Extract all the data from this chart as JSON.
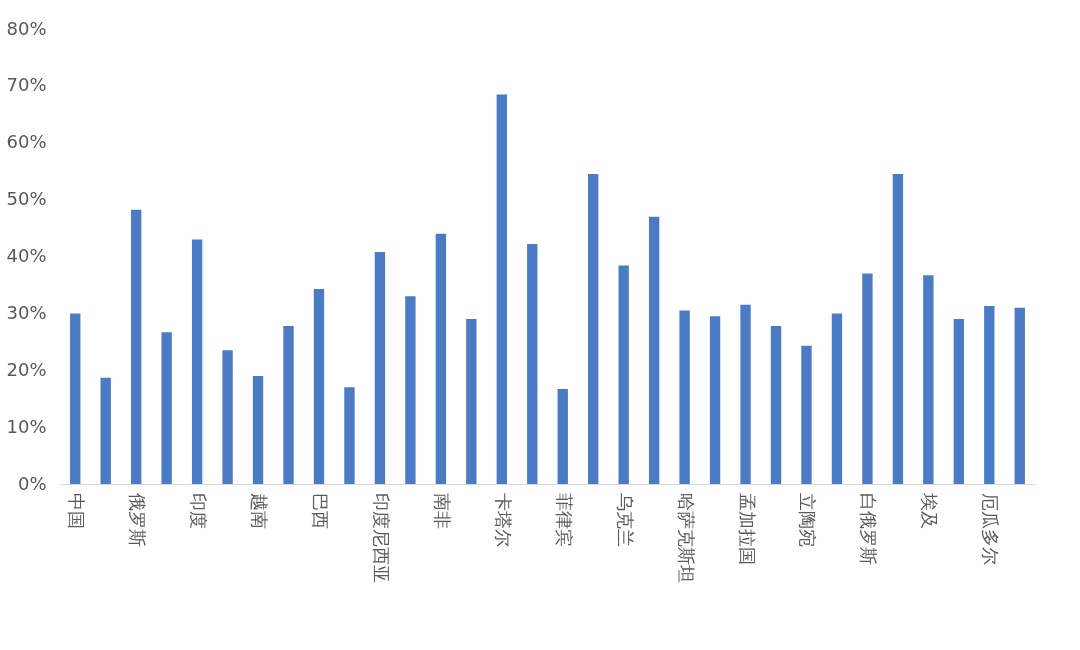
{
  "chart_data": {
    "type": "bar",
    "categories": [
      "中国",
      null,
      "俄罗斯",
      null,
      "印度",
      null,
      "越南",
      null,
      "巴西",
      null,
      "印度尼西亚",
      null,
      "南非",
      null,
      "卡塔尔",
      null,
      "菲律宾",
      null,
      "乌克兰",
      null,
      "哈萨克斯坦",
      null,
      "孟加拉国",
      null,
      "立陶宛",
      null,
      "白俄罗斯",
      null,
      "埃及",
      null,
      "厄瓜多尔",
      null
    ],
    "values": [
      30,
      18.7,
      48.2,
      26.7,
      43,
      23.5,
      19,
      27.8,
      34.3,
      17,
      40.8,
      33,
      44,
      29,
      68.5,
      42.2,
      16.7,
      54.5,
      38.4,
      47,
      30.5,
      29.5,
      31.5,
      27.8,
      24.3,
      30,
      37,
      54.5,
      36.7,
      29,
      31.3,
      31
    ],
    "color": "#4a7bc4",
    "ylim": [
      0,
      80
    ],
    "yticks": [
      {
        "value": 0,
        "label": "0%"
      },
      {
        "value": 10,
        "label": "10%"
      },
      {
        "value": 20,
        "label": "20%"
      },
      {
        "value": 30,
        "label": "30%"
      },
      {
        "value": 40,
        "label": "40%"
      },
      {
        "value": 50,
        "label": "50%"
      },
      {
        "value": 60,
        "label": "60%"
      },
      {
        "value": 70,
        "label": "70%"
      },
      {
        "value": 80,
        "label": "80%"
      }
    ],
    "grid": false
  }
}
